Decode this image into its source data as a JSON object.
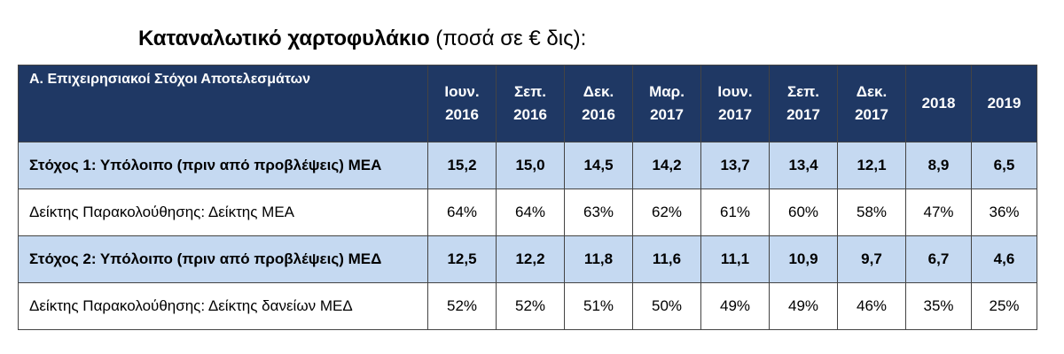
{
  "title": {
    "main": "Καταναλωτικό χαρτοφυλάκιο",
    "suffix": " (ποσά σε € δις):"
  },
  "table": {
    "header": {
      "first": "Α. Επιχειρησιακοί Στόχοι Αποτελεσμάτων",
      "periods": [
        {
          "l1": "Ιουν.",
          "l2": "2016"
        },
        {
          "l1": "Σεπ.",
          "l2": "2016"
        },
        {
          "l1": "Δεκ.",
          "l2": "2016"
        },
        {
          "l1": "Μαρ.",
          "l2": "2017"
        },
        {
          "l1": "Ιουν.",
          "l2": "2017"
        },
        {
          "l1": "Σεπ.",
          "l2": "2017"
        },
        {
          "l1": "Δεκ.",
          "l2": "2017"
        },
        {
          "l1": "2018",
          "l2": ""
        },
        {
          "l1": "2019",
          "l2": ""
        }
      ]
    },
    "rows": [
      {
        "label": "Στόχος 1: Υπόλοιπο (πριν από προβλέψεις) ΜΕΑ",
        "values": [
          "15,2",
          "15,0",
          "14,5",
          "14,2",
          "13,7",
          "13,4",
          "12,1",
          "8,9",
          "6,5"
        ]
      },
      {
        "label": "Δείκτης Παρακολούθησης: Δείκτης ΜΕΑ",
        "values": [
          "64%",
          "64%",
          "63%",
          "62%",
          "61%",
          "60%",
          "58%",
          "47%",
          "36%"
        ]
      },
      {
        "label": "Στόχος 2: Υπόλοιπο (πριν από προβλέψεις) ΜΕΔ",
        "values": [
          "12,5",
          "12,2",
          "11,8",
          "11,6",
          "11,1",
          "10,9",
          "9,7",
          "6,7",
          "4,6"
        ]
      },
      {
        "label": "Δείκτης Παρακολούθησης: Δείκτης δανείων ΜΕΔ",
        "values": [
          "52%",
          "52%",
          "51%",
          "50%",
          "49%",
          "49%",
          "46%",
          "35%",
          "25%"
        ]
      }
    ]
  },
  "colors": {
    "header_bg": "#1f3864",
    "target_row_bg": "#c5d9f1",
    "indicator_row_bg": "#ffffff"
  }
}
